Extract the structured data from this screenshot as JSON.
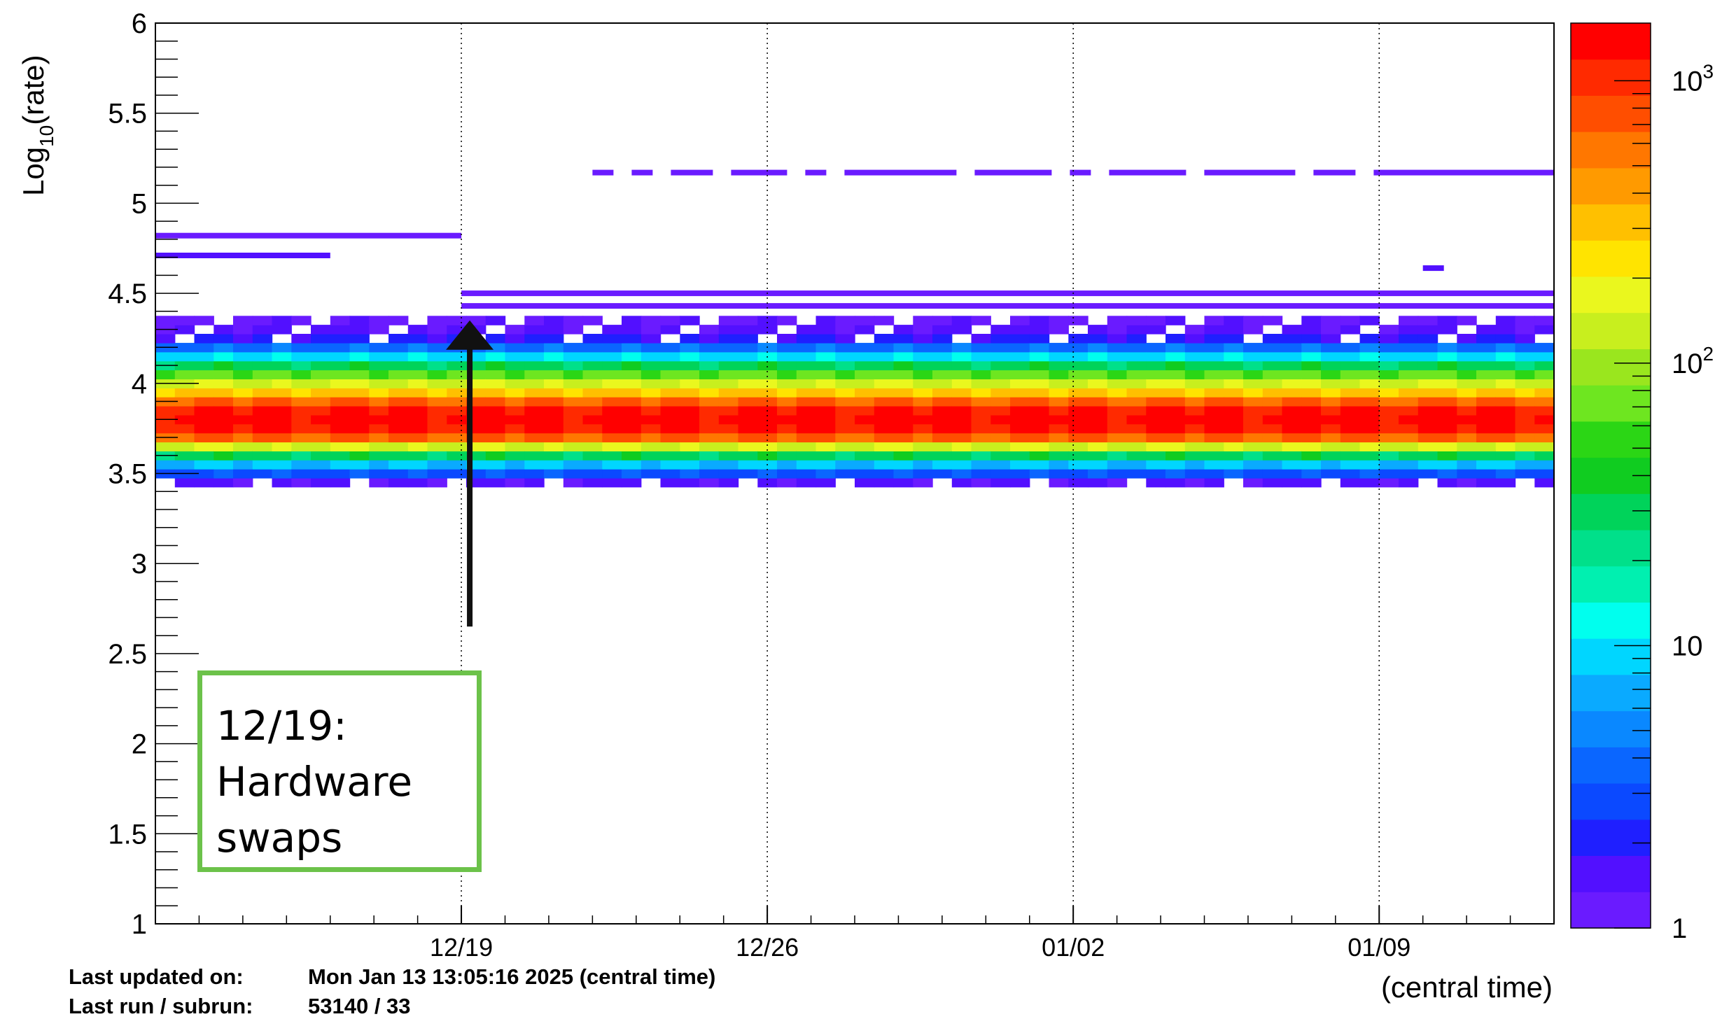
{
  "chart_data": {
    "type": "heatmap",
    "title": "",
    "xlabel": "(central time)",
    "ylabel": "Log10(rate)",
    "ylabel_base": "Log",
    "ylabel_sub": "10",
    "ylabel_tail": "(rate)",
    "ylim": [
      1,
      6
    ],
    "xlim": [
      "2024-12-12",
      "2025-01-13"
    ],
    "x_ticks": [
      {
        "date": "2024-12-19",
        "label": "12/19"
      },
      {
        "date": "2024-12-26",
        "label": "12/26"
      },
      {
        "date": "2025-01-02",
        "label": "01/02"
      },
      {
        "date": "2025-01-09",
        "label": "01/09"
      }
    ],
    "y_ticks": [
      "1",
      "1.5",
      "2",
      "2.5",
      "3",
      "3.5",
      "4",
      "4.5",
      "5",
      "5.5",
      "6"
    ],
    "grid": "vertical dotted at date ticks",
    "z_scale": "log",
    "z_range": [
      1,
      1600
    ],
    "z_ticks": [
      {
        "value": 1,
        "label": "1"
      },
      {
        "value": 10,
        "label": "10"
      },
      {
        "value": 100,
        "label": "10",
        "sup": "2"
      },
      {
        "value": 1000,
        "label": "10",
        "sup": "3"
      }
    ],
    "z_palette": [
      "#6a1bff",
      "#5210ff",
      "#1f1fff",
      "#0b49ff",
      "#0a66ff",
      "#0a88ff",
      "#0aaaff",
      "#00d6ff",
      "#00ffee",
      "#00f0b0",
      "#00e08a",
      "#00d35a",
      "#10cc20",
      "#2bd615",
      "#6ee620",
      "#9ae61e",
      "#c8ef1e",
      "#eaf71e",
      "#ffe400",
      "#ffc000",
      "#ff9a00",
      "#ff7700",
      "#ff4e00",
      "#ff2a00",
      "#ff0000"
    ],
    "density_profile": [
      {
        "y": 3.45,
        "z": 1.5
      },
      {
        "y": 3.5,
        "z": 3
      },
      {
        "y": 3.55,
        "z": 8
      },
      {
        "y": 3.6,
        "z": 30
      },
      {
        "y": 3.65,
        "z": 150
      },
      {
        "y": 3.7,
        "z": 700
      },
      {
        "y": 3.75,
        "z": 1200
      },
      {
        "y": 3.8,
        "z": 1400
      },
      {
        "y": 3.85,
        "z": 1200
      },
      {
        "y": 3.9,
        "z": 700
      },
      {
        "y": 3.95,
        "z": 300
      },
      {
        "y": 4.0,
        "z": 150
      },
      {
        "y": 4.05,
        "z": 70
      },
      {
        "y": 4.1,
        "z": 30
      },
      {
        "y": 4.15,
        "z": 10
      },
      {
        "y": 4.2,
        "z": 4
      },
      {
        "y": 4.25,
        "z": 2
      },
      {
        "y": 4.3,
        "z": 1.5
      },
      {
        "y": 4.35,
        "z": 1.2
      }
    ],
    "sparse_rate_bands": [
      {
        "y": 5.17,
        "z": 1.3,
        "from": "2024-12-22",
        "to": "2025-01-13",
        "note": "intermittent"
      },
      {
        "y": 4.82,
        "z": 1.3,
        "from": "2024-12-12",
        "to": "2024-12-19"
      },
      {
        "y": 4.71,
        "z": 1.5,
        "from": "2024-12-12",
        "to": "2024-12-16"
      },
      {
        "y": 4.5,
        "z": 1.3,
        "from": "2024-12-19",
        "to": "2025-01-13"
      },
      {
        "y": 4.43,
        "z": 1.3,
        "from": "2024-12-19",
        "to": "2025-01-13"
      },
      {
        "y": 4.64,
        "z": 1.5,
        "from": "2025-01-10",
        "to": "2025-01-10"
      }
    ]
  },
  "annotation": {
    "lines": [
      "12/19:",
      "Hardware",
      "swaps"
    ],
    "border_color": "#6cc24a",
    "arrow_date": "2024-12-19",
    "arrow_from_y": 2.65,
    "arrow_to_y": 4.35
  },
  "footer": {
    "updated_label": "Last updated on:",
    "updated_value": "Mon Jan 13 13:05:16 2025 (central time)",
    "run_label": "Last run / subrun:",
    "run_value": "53140 / 33"
  }
}
